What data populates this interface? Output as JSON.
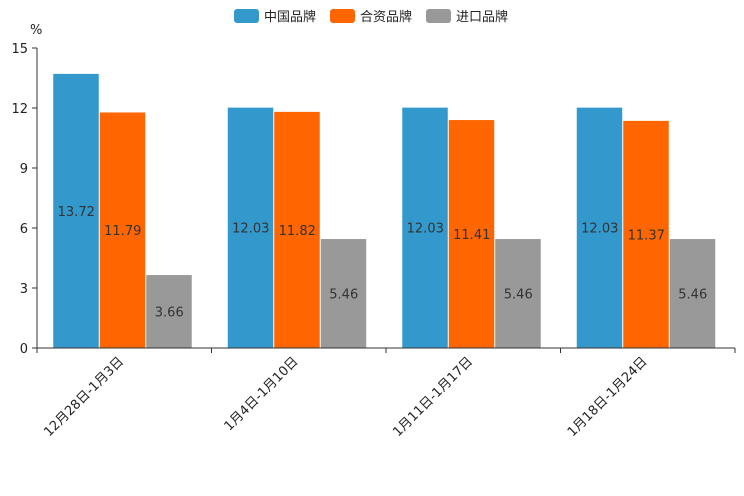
{
  "chart_data": {
    "type": "bar",
    "unit_label": "%",
    "categories": [
      "12月28日-1月3日",
      "1月4日-1月10日",
      "1月11日-1月17日",
      "1月18日-1月24日"
    ],
    "series": [
      {
        "name": "中国品牌",
        "color": "#3399cc",
        "values": [
          13.72,
          12.03,
          12.03,
          12.03
        ],
        "labels": [
          "13.72",
          "12.03",
          "12.03",
          "12.03"
        ]
      },
      {
        "name": "合资品牌",
        "color": "#ff6600",
        "values": [
          11.79,
          11.82,
          11.41,
          11.37
        ],
        "labels": [
          "11.79",
          "11.82",
          "11.41",
          "11.37"
        ]
      },
      {
        "name": "进口品牌",
        "color": "#999999",
        "values": [
          3.66,
          5.46,
          5.46,
          5.46
        ],
        "labels": [
          "3.66",
          "5.46",
          "5.46",
          "5.46"
        ]
      }
    ],
    "ylim": [
      0,
      15
    ],
    "yticks": [
      0,
      3,
      6,
      9,
      12,
      15
    ],
    "ytick_labels": [
      "0",
      "3",
      "6",
      "9",
      "12",
      "15"
    ],
    "legend_position": "top-center"
  }
}
